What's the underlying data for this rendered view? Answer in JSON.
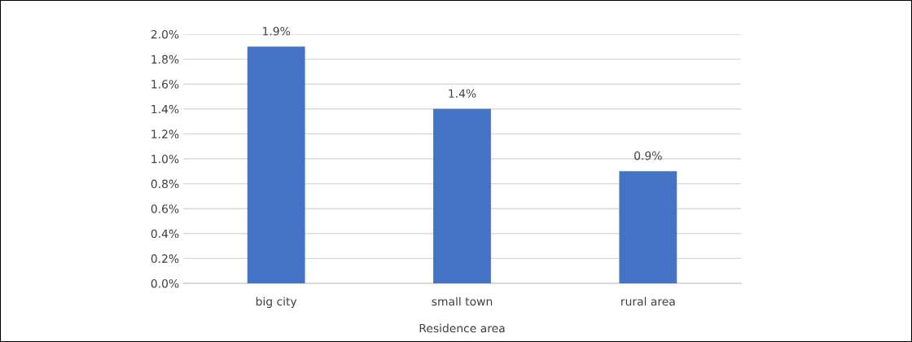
{
  "chart_data": {
    "type": "bar",
    "xlabel": "Residence area",
    "categories": [
      "big city",
      "small town",
      "rural area"
    ],
    "values": [
      1.9,
      1.4,
      0.9
    ],
    "value_labels": [
      "1.9%",
      "1.4%",
      "0.9%"
    ],
    "color": "#4472c4",
    "ylim": [
      0,
      2.0
    ],
    "yticks": [
      {
        "value": 0,
        "label": "0.0%"
      },
      {
        "value": 0.2,
        "label": "0.2%"
      },
      {
        "value": 0.4,
        "label": "0.4%"
      },
      {
        "value": 0.6,
        "label": "0.6%"
      },
      {
        "value": 0.8,
        "label": "0.8%"
      },
      {
        "value": 1.0,
        "label": "1.0%"
      },
      {
        "value": 1.2,
        "label": "1.2%"
      },
      {
        "value": 1.4,
        "label": "1.4%"
      },
      {
        "value": 1.6,
        "label": "1.6%"
      },
      {
        "value": 1.8,
        "label": "1.8%"
      },
      {
        "value": 2.0,
        "label": "2.0%"
      }
    ],
    "grid": "y"
  }
}
